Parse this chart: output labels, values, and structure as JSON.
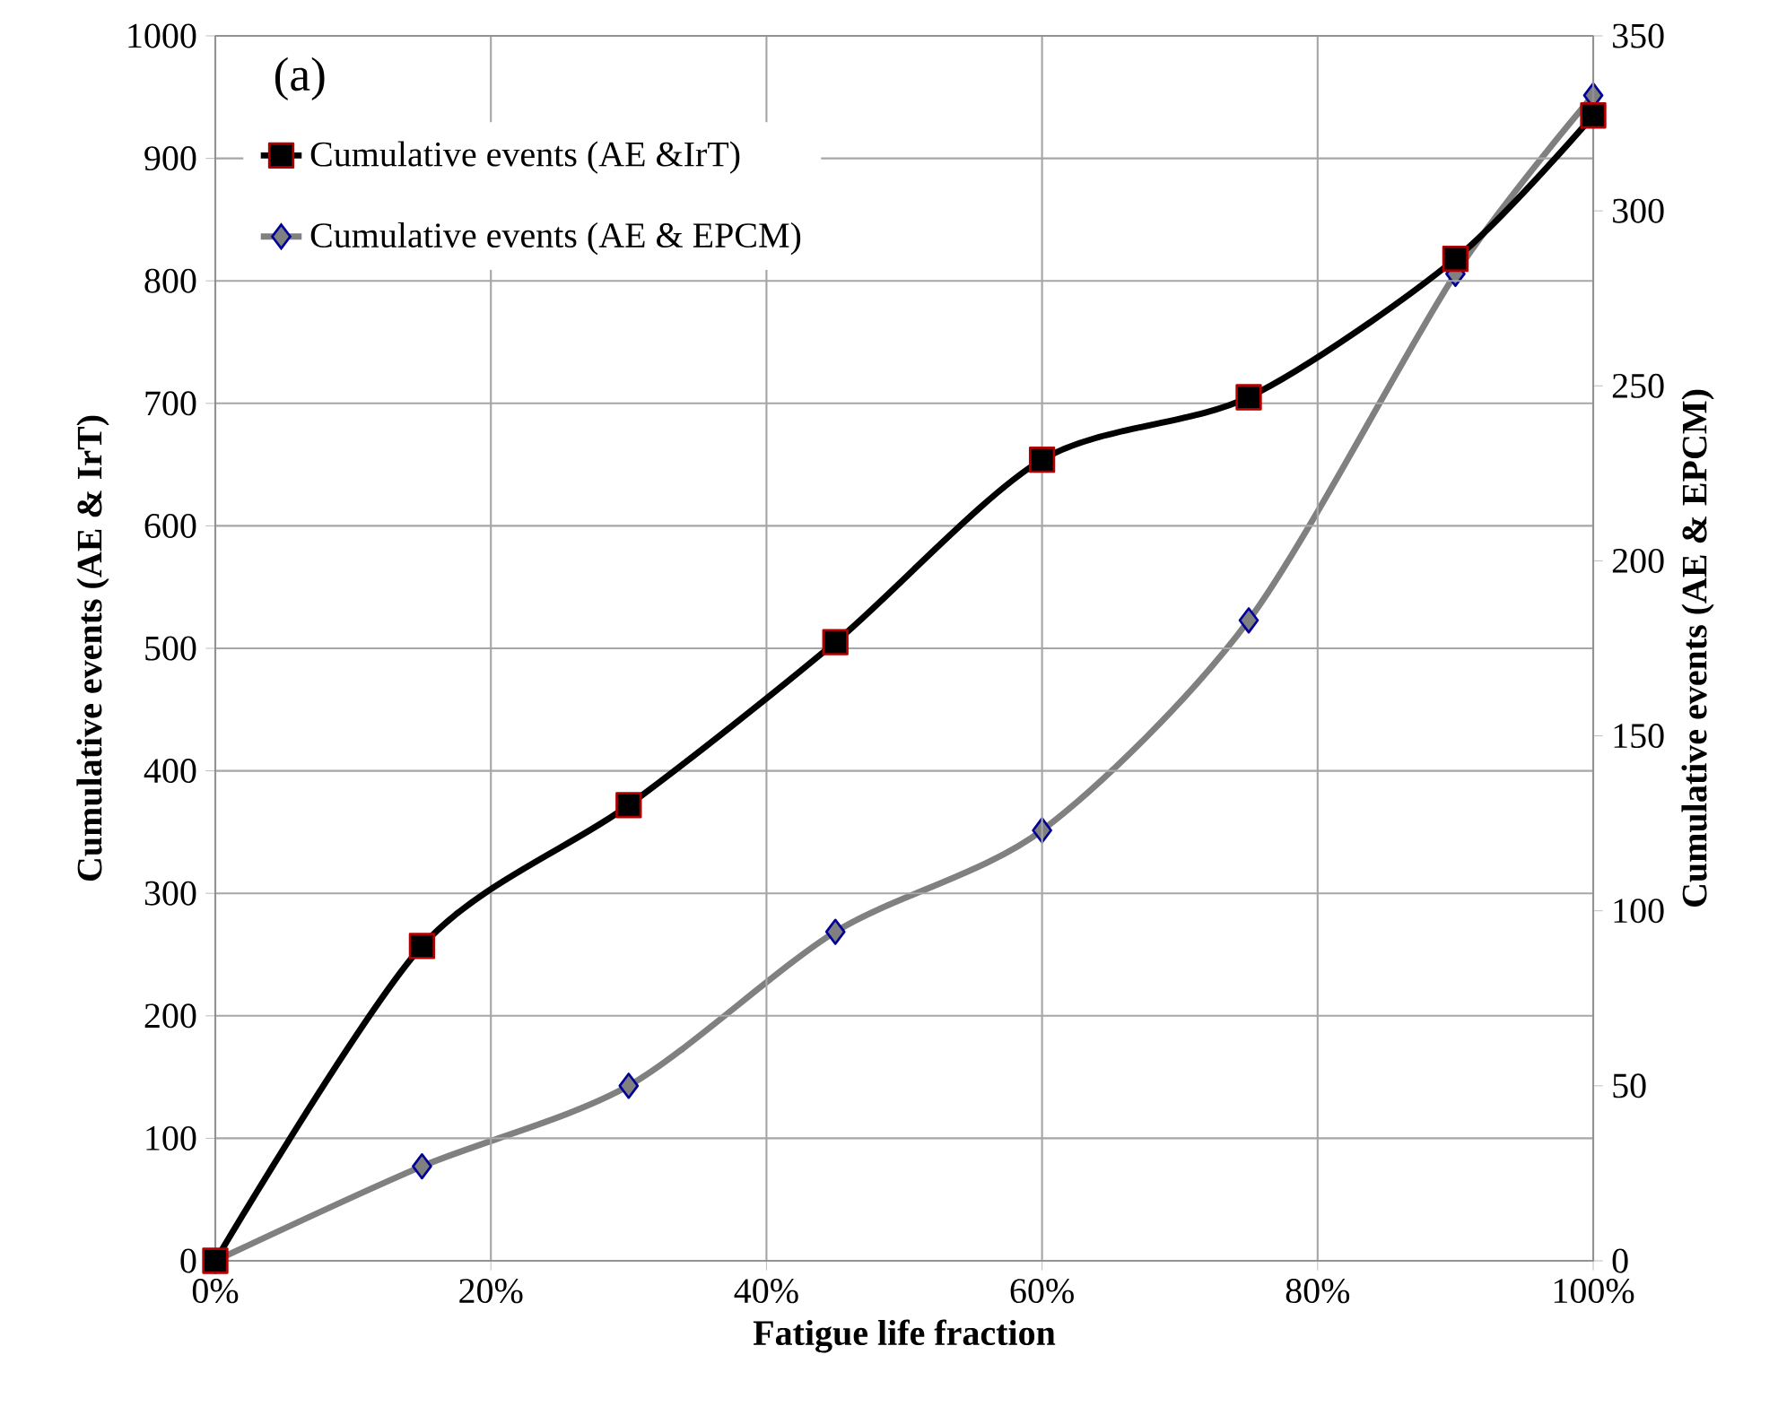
{
  "chart_data": {
    "type": "line",
    "xlabel": "Fatigue life fraction",
    "ylabel": "Cumulative events (AE & IrT)",
    "y2label": "Cumulative events (AE & EPCM)",
    "x": [
      0,
      15,
      30,
      45,
      60,
      75,
      90,
      100
    ],
    "series": [
      {
        "name": "Cumulative events (AE &IrT)",
        "color": "#000000",
        "marker": "square",
        "values": [
          0,
          257,
          372,
          505,
          654,
          705,
          818,
          935
        ]
      },
      {
        "name": "Cumulative events (AE & EPCM)",
        "color": "#808080",
        "marker": "diamond",
        "axis": "y2",
        "values": [
          0,
          27,
          50,
          94,
          123,
          183,
          282,
          333
        ]
      }
    ],
    "xlim": [
      0,
      100
    ],
    "xticks": [
      {
        "value": 0,
        "label": "0%"
      },
      {
        "value": 20,
        "label": "20%"
      },
      {
        "value": 40,
        "label": "40%"
      },
      {
        "value": 60,
        "label": "60%"
      },
      {
        "value": 80,
        "label": "80%"
      },
      {
        "value": 100,
        "label": "100%"
      }
    ],
    "ylim": [
      0,
      1000
    ],
    "yticks": [
      0,
      100,
      200,
      300,
      400,
      500,
      600,
      700,
      800,
      900,
      1000
    ],
    "y2lim": [
      0,
      350
    ],
    "y2ticks": [
      0,
      50,
      100,
      150,
      200,
      250,
      300,
      350
    ],
    "grid": true,
    "legend": "top left",
    "line_style": "solid",
    "annotations": [
      "(a)"
    ]
  }
}
